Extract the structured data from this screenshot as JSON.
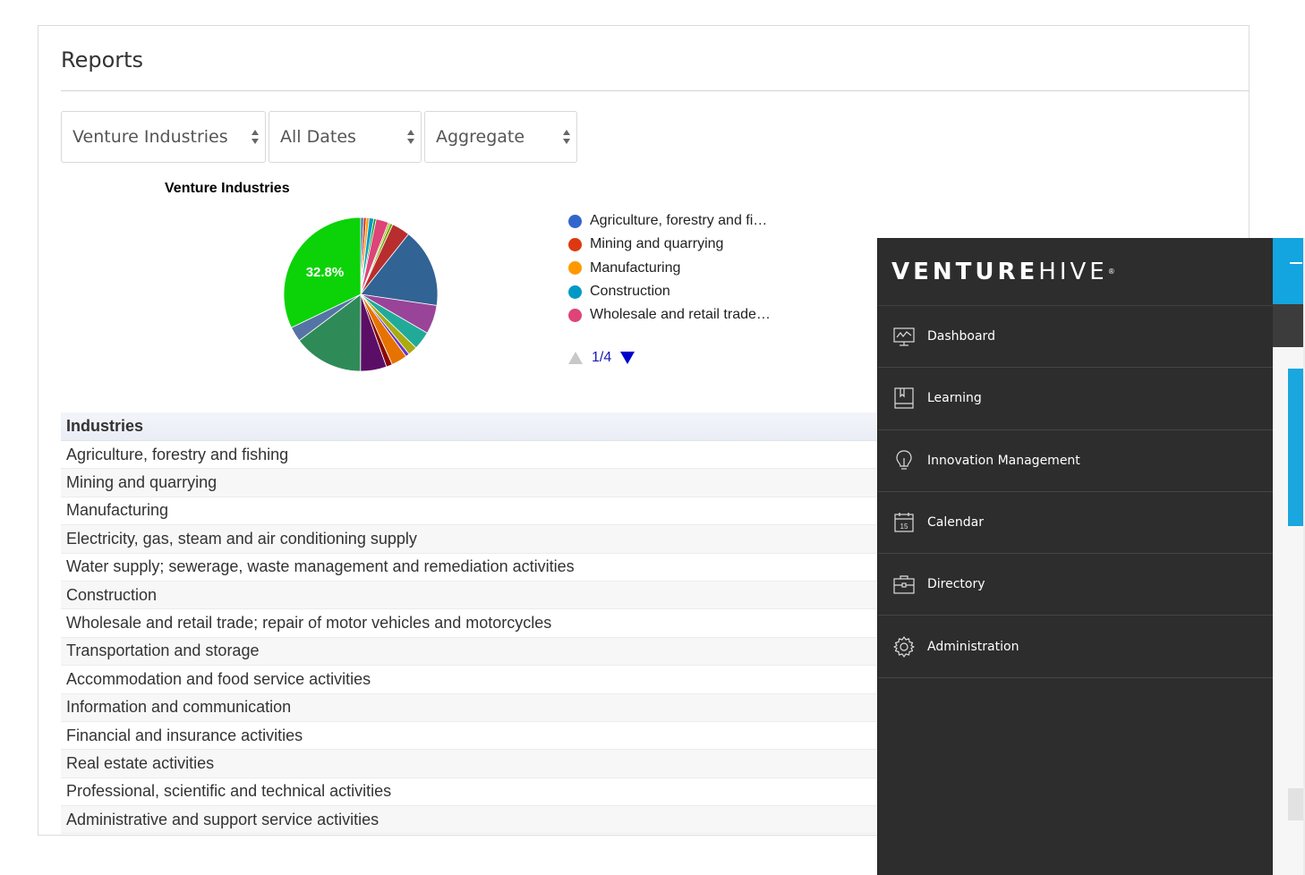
{
  "page": {
    "title": "Reports"
  },
  "filters": [
    {
      "value": "Venture Industries"
    },
    {
      "value": "All Dates"
    },
    {
      "value": "Aggregate"
    }
  ],
  "chart_data": {
    "type": "pie",
    "title": "Venture Industries",
    "slice_label": "32.8%",
    "slices": [
      {
        "label": "Agriculture, forestry and fi…",
        "value": 0.6,
        "color": "#3366cc"
      },
      {
        "label": "Mining and quarrying",
        "value": 0.6,
        "color": "#dc3912"
      },
      {
        "label": "Manufacturing",
        "value": 0.6,
        "color": "#ff9900"
      },
      {
        "label": "Construction",
        "value": 1.0,
        "color": "#0099c6"
      },
      {
        "label": "",
        "value": 0.5,
        "color": "#109618"
      },
      {
        "label": "Wholesale and retail trade…",
        "value": 2.7,
        "color": "#dd4477"
      },
      {
        "label": "",
        "value": 0.4,
        "color": "#aaaa11"
      },
      {
        "label": "",
        "value": 0.6,
        "color": "#66aa00"
      },
      {
        "label": "",
        "value": 3.9,
        "color": "#b82e2e"
      },
      {
        "label": "",
        "value": 17.0,
        "color": "#316395"
      },
      {
        "label": "",
        "value": 6.2,
        "color": "#994499"
      },
      {
        "label": "",
        "value": 3.9,
        "color": "#22aa99"
      },
      {
        "label": "",
        "value": 2.0,
        "color": "#aaaa11"
      },
      {
        "label": "",
        "value": 0.8,
        "color": "#6633cc"
      },
      {
        "label": "",
        "value": 3.4,
        "color": "#e67300"
      },
      {
        "label": "",
        "value": 1.3,
        "color": "#8b0707"
      },
      {
        "label": "",
        "value": 5.6,
        "color": "#5b0e66"
      },
      {
        "label": "",
        "value": 15.0,
        "color": "#2e8b57"
      },
      {
        "label": "",
        "value": 3.2,
        "color": "#5574a6"
      },
      {
        "label": "",
        "value": 32.8,
        "color": "#0bd307"
      }
    ]
  },
  "legend": {
    "items": [
      {
        "label": "Agriculture, forestry and fi…",
        "color": "#3366cc"
      },
      {
        "label": "Mining and quarrying",
        "color": "#dc3912"
      },
      {
        "label": "Manufacturing",
        "color": "#ff9900"
      },
      {
        "label": "Construction",
        "color": "#0099c6"
      },
      {
        "label": "Wholesale and retail trade…",
        "color": "#dd4477"
      }
    ],
    "page": "1/4"
  },
  "table": {
    "header": "Industries",
    "rows": [
      "Agriculture, forestry and fishing",
      "Mining and quarrying",
      "Manufacturing",
      "Electricity, gas, steam and air conditioning supply",
      "Water supply; sewerage, waste management and remediation activities",
      "Construction",
      "Wholesale and retail trade; repair of motor vehicles and motorcycles",
      "Transportation and storage",
      "Accommodation and food service activities",
      "Information and communication",
      "Financial and insurance activities",
      "Real estate activities",
      "Professional, scientific and technical activities",
      "Administrative and support service activities"
    ]
  },
  "sidebar": {
    "brand_bold": "VENTURE",
    "brand_light": "HIVE",
    "brand_mark": "®",
    "items": [
      {
        "label": "Dashboard",
        "icon": "dashboard-icon"
      },
      {
        "label": "Learning",
        "icon": "book-icon"
      },
      {
        "label": "Innovation Management",
        "icon": "lightbulb-icon"
      },
      {
        "label": "Calendar",
        "icon": "calendar-icon"
      },
      {
        "label": "Directory",
        "icon": "briefcase-icon"
      },
      {
        "label": "Administration",
        "icon": "gear-icon"
      }
    ],
    "calendar_day": "15"
  }
}
